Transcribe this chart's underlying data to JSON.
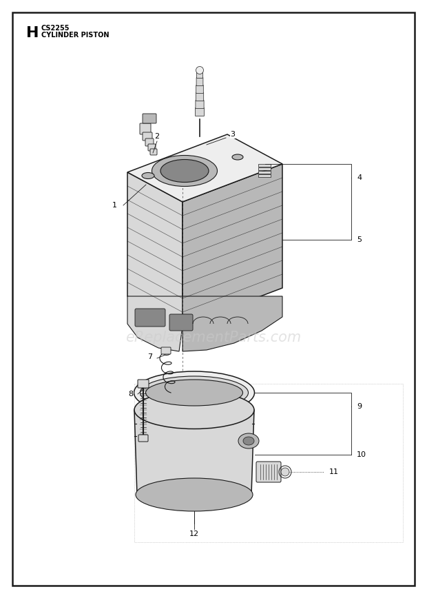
{
  "title_letter": "H",
  "title_model": "CS2255",
  "title_desc": "CYLINDER PISTON",
  "background_color": "#ffffff",
  "border_color": "#1a1a1a",
  "line_color": "#1a1a1a",
  "light_gray": "#d8d8d8",
  "mid_gray": "#b8b8b8",
  "dark_gray": "#888888",
  "very_light": "#eeeeee",
  "watermark": "eReplacementParts.com",
  "watermark_color": "#cccccc",
  "fig_width": 6.2,
  "fig_height": 8.68,
  "dpi": 100
}
